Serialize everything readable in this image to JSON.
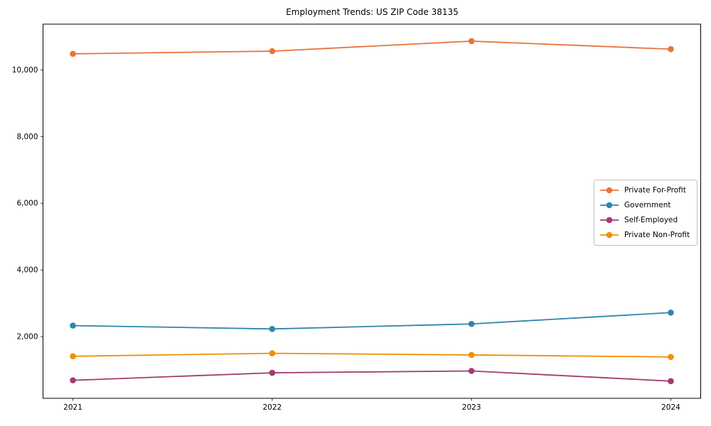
{
  "page": {
    "background": "#ffffff",
    "axis_color": "#000000",
    "legend_border_color": "#bfbfbf"
  },
  "chart_data": {
    "type": "line",
    "title": "Employment Trends: US ZIP Code 38135",
    "xlabel": "",
    "ylabel": "",
    "x": [
      2021,
      2022,
      2023,
      2024
    ],
    "categories": [
      "2021",
      "2022",
      "2023",
      "2024"
    ],
    "series": [
      {
        "name": "Private For-Profit",
        "color": "#E8763B",
        "values": [
          10480,
          10560,
          10860,
          10620
        ]
      },
      {
        "name": "Government",
        "color": "#2E86AB",
        "values": [
          2330,
          2230,
          2380,
          2720
        ]
      },
      {
        "name": "Self-Employed",
        "color": "#A23B72",
        "values": [
          690,
          915,
          970,
          665
        ]
      },
      {
        "name": "Private Non-Profit",
        "color": "#F18F01",
        "values": [
          1410,
          1500,
          1450,
          1390
        ]
      }
    ],
    "yticks": [
      2000,
      4000,
      6000,
      8000,
      10000
    ],
    "ytick_labels": [
      "2,000",
      "4,000",
      "6,000",
      "8,000",
      "10,000"
    ],
    "ylim": [
      150,
      11370
    ],
    "xlim": [
      2020.85,
      2024.15
    ],
    "grid": false,
    "legend_position": "center right",
    "marker": "circle",
    "line_width": 1.8,
    "marker_radius": 4.3
  }
}
